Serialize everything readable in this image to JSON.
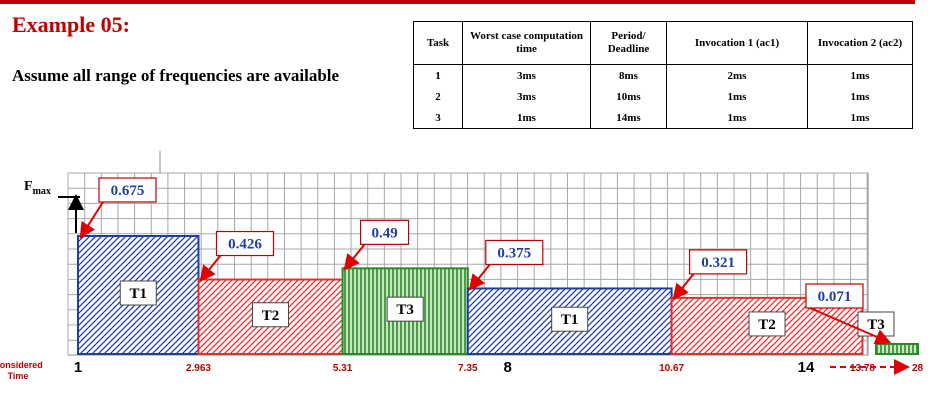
{
  "title": "Example 05:",
  "subtitle": "Assume all range of frequencies are available",
  "table": {
    "headers": [
      "Task",
      "Worst case computation time",
      "Period/ Deadline",
      "Invocation 1 (ac1)",
      "Invocation 2 (ac2)"
    ],
    "rows": [
      [
        "1",
        "3ms",
        "8ms",
        "2ms",
        "1ms"
      ],
      [
        "2",
        "3ms",
        "10ms",
        "1ms",
        "1ms"
      ],
      [
        "3",
        "1ms",
        "14ms",
        "1ms",
        "1ms"
      ]
    ]
  },
  "chart_data": {
    "type": "bar",
    "ylabel": "F",
    "ylabel_sub": "max",
    "xlabel": "Considered Time",
    "axis_max_time": 14,
    "colors": {
      "T1": "#1f3fa0",
      "T2": "#e03030",
      "T3": "#2a8a2a",
      "callout_text": "#1f3fa0",
      "callout_border": "#c00000",
      "tick_red": "#c00000"
    },
    "segments": [
      {
        "task": "T1",
        "start": 1,
        "end": 2.963,
        "freq": 0.675
      },
      {
        "task": "T2",
        "start": 2.963,
        "end": 5.31,
        "freq": 0.426
      },
      {
        "task": "T3",
        "start": 5.31,
        "end": 7.35,
        "freq": 0.49
      },
      {
        "task": "T1",
        "start": 7.35,
        "end": 10.67,
        "freq": 0.375
      },
      {
        "task": "T2",
        "start": 10.67,
        "end": 13.78,
        "freq": 0.321
      },
      {
        "task": "T3",
        "start": 14,
        "end": 28,
        "freq": 0.071
      }
    ],
    "ticks": [
      {
        "label": "1",
        "value": 1,
        "style": "major"
      },
      {
        "label": "2.963",
        "value": 2.963,
        "style": "minor"
      },
      {
        "label": "5.31",
        "value": 5.31,
        "style": "minor"
      },
      {
        "label": "7.35",
        "value": 7.35,
        "style": "minor"
      },
      {
        "label": "8",
        "value": 8,
        "style": "major"
      },
      {
        "label": "10.67",
        "value": 10.67,
        "style": "minor"
      },
      {
        "label": "13.78",
        "value": 13.78,
        "style": "minor"
      },
      {
        "label": "14",
        "value": 14,
        "style": "major"
      },
      {
        "label": "28",
        "value": 28,
        "style": "end"
      }
    ]
  }
}
